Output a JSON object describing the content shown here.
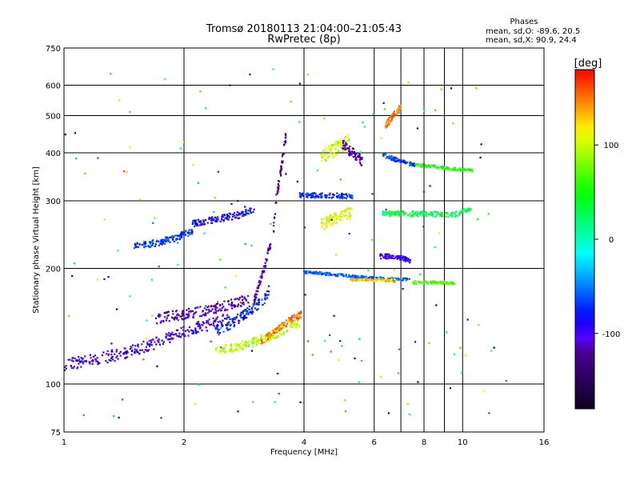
{
  "chart_data": {
    "type": "scatter",
    "title": "Tromsø 20180113 21:04:00–21:05:43",
    "subtitle": "RwPretec (8p)",
    "xlabel": "Frequency [MHz]",
    "ylabel": "Stationary phase Virtual Height [km]",
    "x_scale": "log2",
    "y_scale": "log",
    "xlim": [
      1,
      16
    ],
    "ylim": [
      75,
      750
    ],
    "x_ticks": [
      1,
      2,
      4,
      6,
      8,
      10,
      16
    ],
    "x_tick_labels": [
      "1",
      "2",
      "4",
      "6",
      "8",
      "10",
      "16"
    ],
    "x_grid_extra": [
      7,
      9
    ],
    "y_ticks": [
      75,
      100,
      200,
      300,
      400,
      500,
      600,
      750
    ],
    "y_tick_labels": [
      "75",
      "100",
      "200",
      "300",
      "400",
      "500",
      "600",
      "750"
    ],
    "grid": true,
    "stats": {
      "heading": "Phases",
      "line1": "mean, sd,O: -89.6, 20.5",
      "line2": "mean, sd,X:  90.9, 24.4"
    },
    "colorbar": {
      "label": "[deg]",
      "range": [
        -180,
        180
      ],
      "ticks": [
        100,
        0,
        -100
      ],
      "tick_labels": [
        "100",
        "0",
        "-100"
      ]
    },
    "traces": [
      {
        "f": [
          1.0,
          1.2,
          1.45,
          1.7,
          1.95,
          2.2,
          2.6
        ],
        "h": [
          112,
          116,
          121,
          128,
          135,
          141,
          148
        ],
        "phase": -100,
        "spread": 0.035
      },
      {
        "f": [
          1.7,
          2.0,
          2.3,
          2.6,
          2.9
        ],
        "h": [
          148,
          152,
          156,
          161,
          166
        ],
        "phase": -110,
        "spread": 0.03
      },
      {
        "f": [
          2.4,
          2.6,
          2.8,
          3.0,
          3.2,
          3.3
        ],
        "h": [
          137,
          143,
          150,
          158,
          168,
          180
        ],
        "phase": -75,
        "spread": 0.03
      },
      {
        "f": [
          2.4,
          2.8,
          3.2,
          3.6,
          3.9
        ],
        "h": [
          122,
          126,
          132,
          139,
          145
        ],
        "phase": 95,
        "spread": 0.025
      },
      {
        "f": [
          3.1,
          3.3,
          3.5,
          3.7,
          3.95
        ],
        "h": [
          128,
          135,
          141,
          147,
          152
        ],
        "phase": 150,
        "spread": 0.02
      },
      {
        "f": [
          3.0,
          3.1,
          3.2,
          3.25,
          3.3
        ],
        "h": [
          165,
          185,
          205,
          220,
          232
        ],
        "phase": -120,
        "spread": 0.02
      },
      {
        "f": [
          4.0,
          4.7,
          5.5,
          6.5,
          7.4
        ],
        "h": [
          196,
          193,
          190,
          188,
          187
        ],
        "phase": -55,
        "spread": 0.008
      },
      {
        "f": [
          5.2,
          6.0,
          6.8
        ],
        "h": [
          187,
          187,
          186
        ],
        "phase": 130,
        "spread": 0.008
      },
      {
        "f": [
          7.5,
          8.5,
          9.6
        ],
        "h": [
          184,
          184,
          183
        ],
        "phase": 70,
        "spread": 0.008
      },
      {
        "f": [
          1.5,
          1.7,
          1.9,
          2.1
        ],
        "h": [
          228,
          233,
          240,
          250
        ],
        "phase": -70,
        "spread": 0.02
      },
      {
        "f": [
          2.1,
          2.4,
          2.8,
          3.0
        ],
        "h": [
          262,
          268,
          277,
          284
        ],
        "phase": -85,
        "spread": 0.02
      },
      {
        "f": [
          3.35,
          3.4,
          3.5,
          3.6
        ],
        "h": [
          250,
          300,
          360,
          440
        ],
        "phase": -120,
        "spread": 0.03
      },
      {
        "f": [
          3.9,
          4.3,
          4.8,
          5.3
        ],
        "h": [
          310,
          310,
          310,
          308
        ],
        "phase": -70,
        "spread": 0.015
      },
      {
        "f": [
          4.4,
          4.8,
          5.3
        ],
        "h": [
          260,
          270,
          280
        ],
        "phase": 110,
        "spread": 0.035
      },
      {
        "f": [
          4.4,
          4.8,
          5.2
        ],
        "h": [
          390,
          410,
          430
        ],
        "phase": 100,
        "spread": 0.04
      },
      {
        "f": [
          5.0,
          5.3,
          5.6
        ],
        "h": [
          420,
          400,
          380
        ],
        "phase": -120,
        "spread": 0.03
      },
      {
        "f": [
          6.3,
          7.0,
          7.6
        ],
        "h": [
          395,
          380,
          372
        ],
        "phase": -65,
        "spread": 0.012
      },
      {
        "f": [
          7.6,
          8.6,
          9.6,
          10.6
        ],
        "h": [
          372,
          368,
          363,
          360
        ],
        "phase": 55,
        "spread": 0.008
      },
      {
        "f": [
          6.3,
          7.0,
          8.0,
          9.5,
          10.5
        ],
        "h": [
          278,
          278,
          278,
          276,
          285
        ],
        "phase": 30,
        "spread": 0.015
      },
      {
        "f": [
          6.2,
          6.8,
          7.4
        ],
        "h": [
          215,
          215,
          210
        ],
        "phase": -95,
        "spread": 0.015
      },
      {
        "f": [
          6.4,
          6.7,
          7.0
        ],
        "h": [
          470,
          500,
          525
        ],
        "phase": 150,
        "spread": 0.02
      }
    ]
  }
}
